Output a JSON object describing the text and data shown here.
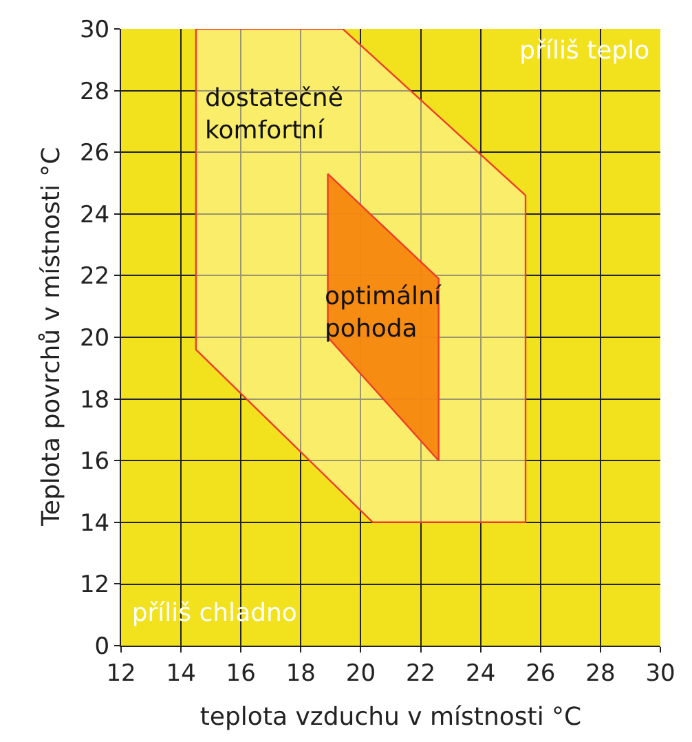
{
  "chart_data": [
    {
      "type": "area",
      "ylabel": "Teplota povrchů v místnosti °C",
      "xlim": [
        12,
        30
      ],
      "xticks": [
        12,
        14,
        16,
        18,
        20,
        22,
        24,
        26,
        28,
        30
      ],
      "ylim": [
        12,
        30
      ],
      "yticks": [
        {
          "value": 12,
          "label": null
        },
        14,
        16,
        18,
        20,
        22,
        24,
        26,
        28,
        30
      ],
      "tick_labels": "y",
      "grid": true,
      "series": [
        {
          "name": "dostatečně\nkomfortní",
          "color": "#f03c28",
          "x": [
            14.5,
            19.4,
            25.5,
            25.5,
            20.4,
            14.5,
            14.5
          ],
          "values": [
            30,
            30,
            24.6,
            14,
            14,
            19.6,
            30
          ]
        },
        {
          "name": "optimální\npohoda",
          "color": "#f7870f",
          "x": [
            18.9,
            22.6,
            22.6,
            18.9,
            18.9
          ],
          "values": [
            25.3,
            21.9,
            16,
            20,
            25.3
          ]
        }
      ],
      "annotations": [
        "příliš teplo"
      ]
    },
    {
      "type": "area",
      "xlabel": "teplota vzduchu v místnosti °C",
      "xlim": [
        12,
        30
      ],
      "xticks": [
        12,
        14,
        16,
        18,
        20,
        22,
        24,
        26,
        28,
        30
      ],
      "ylim": [
        0,
        12
      ],
      "yticks": [
        0,
        12
      ],
      "grid": true,
      "annotations": [
        "příliš chladno"
      ]
    }
  ]
}
